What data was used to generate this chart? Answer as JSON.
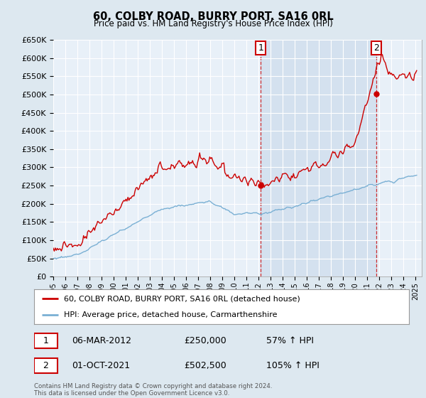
{
  "title": "60, COLBY ROAD, BURRY PORT, SA16 0RL",
  "subtitle": "Price paid vs. HM Land Registry's House Price Index (HPI)",
  "ylabel_ticks": [
    "£0",
    "£50K",
    "£100K",
    "£150K",
    "£200K",
    "£250K",
    "£300K",
    "£350K",
    "£400K",
    "£450K",
    "£500K",
    "£550K",
    "£600K",
    "£650K"
  ],
  "ylim": [
    0,
    650000
  ],
  "ytick_values": [
    0,
    50000,
    100000,
    150000,
    200000,
    250000,
    300000,
    350000,
    400000,
    450000,
    500000,
    550000,
    600000,
    650000
  ],
  "xlim_start": 1995.0,
  "xlim_end": 2025.5,
  "sale1_x": 2012.17,
  "sale1_y": 250000,
  "sale1_label": "1",
  "sale2_x": 2021.75,
  "sale2_y": 502500,
  "sale2_label": "2",
  "legend_line1": "60, COLBY ROAD, BURRY PORT, SA16 0RL (detached house)",
  "legend_line2": "HPI: Average price, detached house, Carmarthenshire",
  "table_row1": [
    "1",
    "06-MAR-2012",
    "£250,000",
    "57% ↑ HPI"
  ],
  "table_row2": [
    "2",
    "01-OCT-2021",
    "£502,500",
    "105% ↑ HPI"
  ],
  "footer": "Contains HM Land Registry data © Crown copyright and database right 2024.\nThis data is licensed under the Open Government Licence v3.0.",
  "line_color_red": "#cc0000",
  "line_color_blue": "#7ab0d4",
  "background_color": "#dde8f0",
  "plot_bg": "#e8f0f8",
  "shade_color": "#ccdcec"
}
